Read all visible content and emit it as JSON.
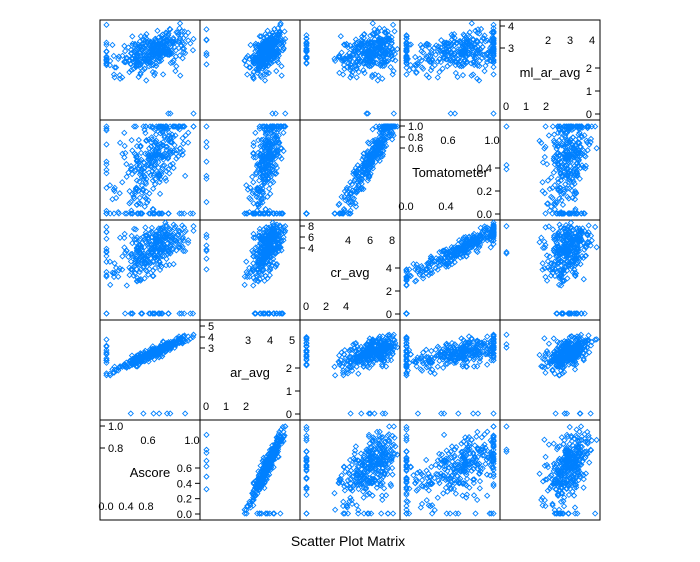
{
  "chart_data": {
    "type": "scatter",
    "subtype": "scatter-plot-matrix",
    "title": "",
    "xlabel": "Scatter Plot Matrix",
    "point_color": "#0080ff",
    "point_shape": "open-diamond",
    "variables": [
      {
        "name": "Ascore",
        "range": [
          0.0,
          1.0
        ],
        "ticks_a": [
          "0.0",
          "0.4",
          "0.8"
        ],
        "ticks_b": [
          "0.6",
          "1.0"
        ],
        "yticks_a": [
          "0.0",
          "0.2",
          "0.4",
          "0.6"
        ],
        "yticks_b": [
          "0.8",
          "1.0"
        ]
      },
      {
        "name": "ar_avg",
        "range": [
          0,
          5
        ],
        "ticks_a": [
          "0",
          "1",
          "2"
        ],
        "ticks_b": [
          "3",
          "4",
          "5"
        ],
        "yticks_a": [
          "0",
          "1",
          "2"
        ],
        "yticks_b": [
          "3",
          "4",
          "5"
        ]
      },
      {
        "name": "cr_avg",
        "range": [
          0,
          8
        ],
        "ticks_a": [
          "0",
          "2",
          "4"
        ],
        "ticks_b": [
          "4",
          "6",
          "8"
        ],
        "yticks_a": [
          "0",
          "2",
          "4"
        ],
        "yticks_b": [
          "4",
          "6",
          "8"
        ]
      },
      {
        "name": "Tomatometer",
        "range": [
          0.0,
          1.0
        ],
        "ticks_a": [
          "0.0",
          "0.4"
        ],
        "ticks_b": [
          "0.6",
          "1.0"
        ],
        "yticks_a": [
          "0.0",
          "0.2",
          "0.4"
        ],
        "yticks_b": [
          "0.6",
          "0.8",
          "1.0"
        ]
      },
      {
        "name": "ml_ar_avg",
        "range": [
          0,
          4
        ],
        "ticks_a": [
          "0",
          "1",
          "2"
        ],
        "ticks_b": [
          "2",
          "3",
          "4"
        ],
        "yticks_a": [
          "0",
          "1",
          "2"
        ],
        "yticks_b": [
          "3",
          "4"
        ]
      }
    ],
    "approximate_relationships": [
      {
        "x": "ar_avg",
        "y": "Ascore",
        "pattern": "strong positive linear"
      },
      {
        "x": "Tomatometer",
        "y": "cr_avg",
        "pattern": "strong positive linear"
      },
      {
        "x": "cr_avg",
        "y": "Tomatometer",
        "pattern": "positive, curved"
      },
      {
        "x": "ar_avg",
        "y": "ml_ar_avg",
        "pattern": "moderate positive"
      },
      {
        "x": "ml_ar_avg",
        "y": "Tomatometer",
        "pattern": "positive, many points at 0"
      }
    ]
  }
}
